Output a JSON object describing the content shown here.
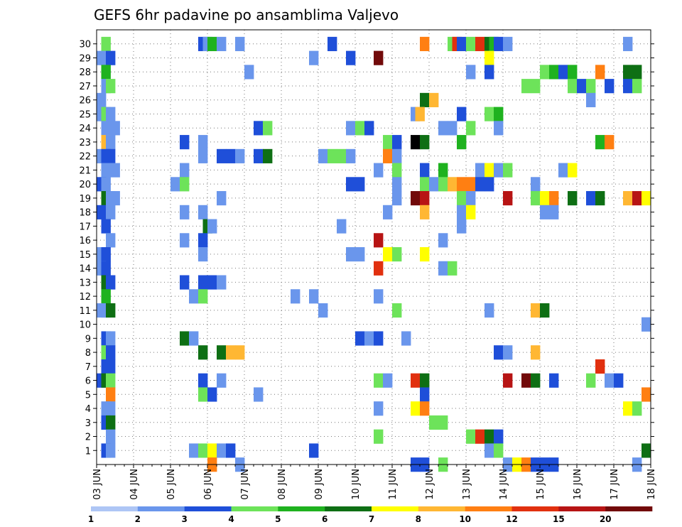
{
  "chart_data": {
    "type": "heatmap",
    "title": "GEFS 6hr padavine po ansamblima Valjevo",
    "xlabel": "",
    "ylabel": "",
    "x_tick_labels": [
      "03 JUN",
      "04 JUN",
      "05 JUN",
      "06 JUN",
      "07 JUN",
      "08 JUN",
      "09 JUN",
      "10 JUN",
      "11 JUN",
      "12 JUN",
      "13 JUN",
      "14 JUN",
      "15 JUN",
      "16 JUN",
      "17 JUN",
      "18 JUN"
    ],
    "y_tick_labels": [
      "1",
      "2",
      "3",
      "4",
      "5",
      "6",
      "7",
      "8",
      "9",
      "10",
      "11",
      "12",
      "13",
      "14",
      "15",
      "16",
      "17",
      "18",
      "19",
      "20",
      "21",
      "22",
      "23",
      "24",
      "25",
      "26",
      "27",
      "28",
      "29",
      "30"
    ],
    "xlim": [
      0,
      60
    ],
    "ylim": [
      0,
      31
    ],
    "grid": true,
    "colorbar": {
      "placement": "bottom",
      "labels": [
        "1",
        "2",
        "3",
        "4",
        "5",
        "6",
        "7",
        "8",
        "10",
        "12",
        "15",
        "20"
      ],
      "colors": [
        "#aec6f5",
        "#6a96ec",
        "#1f4fd9",
        "#6de35a",
        "#1fb21f",
        "#0e6f14",
        "#ffff00",
        "#ffb733",
        "#ff7f12",
        "#e1300f",
        "#b71414",
        "#720a0a"
      ]
    },
    "cells": [
      [
        30,
        0.5,
        3
      ],
      [
        30,
        11,
        2
      ],
      [
        30,
        11.5,
        1
      ],
      [
        30,
        12,
        4
      ],
      [
        30,
        13,
        1
      ],
      [
        30,
        15,
        1
      ],
      [
        30,
        25,
        2
      ],
      [
        30,
        35,
        8
      ],
      [
        30,
        38,
        3
      ],
      [
        30,
        38.5,
        9
      ],
      [
        30,
        39,
        2
      ],
      [
        30,
        40,
        3
      ],
      [
        30,
        41,
        9
      ],
      [
        30,
        42,
        5
      ],
      [
        30,
        42.5,
        4
      ],
      [
        30,
        43,
        2
      ],
      [
        30,
        44,
        1
      ],
      [
        30,
        57,
        1
      ],
      [
        29,
        0,
        1
      ],
      [
        29,
        1,
        2
      ],
      [
        29,
        23,
        1
      ],
      [
        29,
        27,
        2
      ],
      [
        29,
        30,
        11
      ],
      [
        29,
        42,
        6
      ],
      [
        28,
        0.5,
        4
      ],
      [
        28,
        16,
        1
      ],
      [
        28,
        40,
        1
      ],
      [
        28,
        42,
        2
      ],
      [
        28,
        48,
        3
      ],
      [
        28,
        49,
        4
      ],
      [
        28,
        50,
        2
      ],
      [
        28,
        51,
        4
      ],
      [
        28,
        54,
        8
      ],
      [
        28,
        57,
        5
      ],
      [
        28,
        58,
        5
      ],
      [
        27,
        0.5,
        1
      ],
      [
        27,
        1,
        3
      ],
      [
        27,
        46,
        3
      ],
      [
        27,
        47,
        3
      ],
      [
        27,
        51,
        3
      ],
      [
        27,
        52,
        2
      ],
      [
        27,
        53,
        3
      ],
      [
        27,
        55,
        2
      ],
      [
        27,
        57,
        2
      ],
      [
        27,
        58,
        3
      ],
      [
        26,
        0,
        1
      ],
      [
        26,
        35,
        5
      ],
      [
        26,
        36,
        7
      ],
      [
        26,
        53,
        1
      ],
      [
        25,
        0,
        1
      ],
      [
        25,
        0.5,
        3
      ],
      [
        25,
        1,
        1
      ],
      [
        25,
        34,
        1
      ],
      [
        25,
        34.5,
        7
      ],
      [
        25,
        39,
        2
      ],
      [
        25,
        42,
        3
      ],
      [
        25,
        43,
        4
      ],
      [
        24,
        0.5,
        1
      ],
      [
        24,
        1.5,
        1
      ],
      [
        24,
        17,
        2
      ],
      [
        24,
        18,
        3
      ],
      [
        24,
        27,
        1
      ],
      [
        24,
        28,
        3
      ],
      [
        24,
        29,
        2
      ],
      [
        24,
        37,
        1
      ],
      [
        24,
        38,
        1
      ],
      [
        24,
        40,
        3
      ],
      [
        24,
        43,
        1
      ],
      [
        23,
        0.5,
        7
      ],
      [
        23,
        1,
        1
      ],
      [
        23,
        9,
        2
      ],
      [
        23,
        11,
        1
      ],
      [
        23,
        31,
        3
      ],
      [
        23,
        32,
        2
      ],
      [
        23,
        34,
        12
      ],
      [
        23,
        35,
        5
      ],
      [
        23,
        39,
        4
      ],
      [
        23,
        54,
        4
      ],
      [
        23,
        55,
        8
      ],
      [
        22,
        0,
        1
      ],
      [
        22,
        0.5,
        2
      ],
      [
        22,
        1,
        2
      ],
      [
        22,
        11,
        1
      ],
      [
        22,
        13,
        2
      ],
      [
        22,
        14,
        2
      ],
      [
        22,
        15,
        1
      ],
      [
        22,
        17,
        2
      ],
      [
        22,
        18,
        5
      ],
      [
        22,
        24,
        1
      ],
      [
        22,
        25,
        3
      ],
      [
        22,
        26,
        3
      ],
      [
        22,
        27,
        1
      ],
      [
        22,
        31,
        8
      ],
      [
        22,
        32,
        1
      ],
      [
        21,
        0.5,
        1
      ],
      [
        21,
        1.5,
        1
      ],
      [
        21,
        9,
        1
      ],
      [
        21,
        30,
        1
      ],
      [
        21,
        32,
        3
      ],
      [
        21,
        35,
        2
      ],
      [
        21,
        37,
        4
      ],
      [
        21,
        41,
        1
      ],
      [
        21,
        42,
        6
      ],
      [
        21,
        43,
        1
      ],
      [
        21,
        44,
        3
      ],
      [
        21,
        50,
        1
      ],
      [
        21,
        51,
        6
      ],
      [
        20,
        0,
        2
      ],
      [
        20,
        0.5,
        1
      ],
      [
        20,
        8,
        1
      ],
      [
        20,
        9,
        3
      ],
      [
        20,
        27,
        2
      ],
      [
        20,
        28,
        2
      ],
      [
        20,
        32,
        1
      ],
      [
        20,
        35,
        3
      ],
      [
        20,
        36,
        1
      ],
      [
        20,
        37,
        3
      ],
      [
        20,
        38,
        7
      ],
      [
        20,
        39,
        8
      ],
      [
        20,
        40,
        8
      ],
      [
        20,
        41,
        2
      ],
      [
        20,
        42,
        2
      ],
      [
        20,
        47,
        1
      ],
      [
        19,
        0.5,
        5
      ],
      [
        19,
        1,
        1
      ],
      [
        19,
        1.5,
        1
      ],
      [
        19,
        13,
        1
      ],
      [
        19,
        32,
        1
      ],
      [
        19,
        34,
        11
      ],
      [
        19,
        35,
        10
      ],
      [
        19,
        39,
        3
      ],
      [
        19,
        40,
        1
      ],
      [
        19,
        44,
        10
      ],
      [
        19,
        47,
        3
      ],
      [
        19,
        48,
        6
      ],
      [
        19,
        49,
        8
      ],
      [
        19,
        51,
        5
      ],
      [
        19,
        53,
        2
      ],
      [
        19,
        54,
        5
      ],
      [
        19,
        57,
        7
      ],
      [
        19,
        58,
        10
      ],
      [
        19,
        59,
        6
      ],
      [
        18,
        0,
        2
      ],
      [
        18,
        1,
        1
      ],
      [
        18,
        9,
        1
      ],
      [
        18,
        11,
        1
      ],
      [
        18,
        31,
        1
      ],
      [
        18,
        35,
        7
      ],
      [
        18,
        39,
        1
      ],
      [
        18,
        40,
        6
      ],
      [
        18,
        48,
        1
      ],
      [
        18,
        49,
        1
      ],
      [
        17,
        0.5,
        2
      ],
      [
        17,
        11.5,
        5
      ],
      [
        17,
        12,
        1
      ],
      [
        17,
        26,
        1
      ],
      [
        17,
        39,
        1
      ],
      [
        16,
        1,
        1
      ],
      [
        16,
        9,
        1
      ],
      [
        16,
        11,
        2
      ],
      [
        16,
        30,
        10
      ],
      [
        16,
        37,
        1
      ],
      [
        15,
        0,
        1
      ],
      [
        15,
        0.5,
        2
      ],
      [
        15,
        11,
        1
      ],
      [
        15,
        27,
        1
      ],
      [
        15,
        28,
        1
      ],
      [
        15,
        31,
        6
      ],
      [
        15,
        32,
        3
      ],
      [
        15,
        35,
        6
      ],
      [
        14,
        0,
        1
      ],
      [
        14,
        0.5,
        2
      ],
      [
        14,
        30,
        9
      ],
      [
        14,
        37,
        1
      ],
      [
        14,
        38,
        3
      ],
      [
        13,
        0.5,
        5
      ],
      [
        13,
        1,
        2
      ],
      [
        13,
        9,
        2
      ],
      [
        13,
        11,
        2
      ],
      [
        13,
        12,
        2
      ],
      [
        13,
        13,
        1
      ],
      [
        12,
        0.5,
        4
      ],
      [
        12,
        10,
        1
      ],
      [
        12,
        11,
        3
      ],
      [
        12,
        21,
        1
      ],
      [
        12,
        23,
        1
      ],
      [
        12,
        30,
        1
      ],
      [
        11,
        0,
        1
      ],
      [
        11,
        0.5,
        1
      ],
      [
        11,
        1,
        5
      ],
      [
        11,
        24,
        1
      ],
      [
        11,
        32,
        3
      ],
      [
        11,
        42,
        1
      ],
      [
        11,
        47,
        7
      ],
      [
        11,
        48,
        5
      ],
      [
        10,
        59,
        1
      ],
      [
        9,
        0.5,
        2
      ],
      [
        9,
        1,
        1
      ],
      [
        9,
        9,
        5
      ],
      [
        9,
        10,
        1
      ],
      [
        9,
        28,
        2
      ],
      [
        9,
        29,
        1
      ],
      [
        9,
        30,
        2
      ],
      [
        9,
        33,
        1
      ],
      [
        8,
        0.5,
        3
      ],
      [
        8,
        1,
        2
      ],
      [
        8,
        11,
        5
      ],
      [
        8,
        13,
        5
      ],
      [
        8,
        14,
        7
      ],
      [
        8,
        15,
        7
      ],
      [
        8,
        43,
        2
      ],
      [
        8,
        44,
        1
      ],
      [
        8,
        47,
        7
      ],
      [
        7,
        0.5,
        2
      ],
      [
        7,
        1,
        2
      ],
      [
        7,
        54,
        9
      ],
      [
        6,
        0,
        2
      ],
      [
        6,
        0.5,
        5
      ],
      [
        6,
        1,
        3
      ],
      [
        6,
        11,
        2
      ],
      [
        6,
        13,
        1
      ],
      [
        6,
        30,
        3
      ],
      [
        6,
        31,
        1
      ],
      [
        6,
        34,
        9
      ],
      [
        6,
        35,
        5
      ],
      [
        6,
        44,
        10
      ],
      [
        6,
        46,
        11
      ],
      [
        6,
        47,
        5
      ],
      [
        6,
        49,
        2
      ],
      [
        6,
        53,
        3
      ],
      [
        6,
        55,
        1
      ],
      [
        6,
        56,
        2
      ],
      [
        5,
        1,
        8
      ],
      [
        5,
        11,
        3
      ],
      [
        5,
        12,
        2
      ],
      [
        5,
        17,
        1
      ],
      [
        5,
        35,
        2
      ],
      [
        5,
        59,
        8
      ],
      [
        4,
        0.5,
        1
      ],
      [
        4,
        1,
        1
      ],
      [
        4,
        30,
        1
      ],
      [
        4,
        34,
        6
      ],
      [
        4,
        35,
        8
      ],
      [
        4,
        57,
        6
      ],
      [
        4,
        58,
        3
      ],
      [
        3,
        0.5,
        2
      ],
      [
        3,
        1,
        5
      ],
      [
        3,
        36,
        3
      ],
      [
        3,
        37,
        3
      ],
      [
        2,
        1,
        1
      ],
      [
        2,
        30,
        3
      ],
      [
        2,
        40,
        3
      ],
      [
        2,
        41,
        9
      ],
      [
        2,
        42,
        5
      ],
      [
        2,
        43,
        2
      ],
      [
        1,
        0.5,
        2
      ],
      [
        1,
        1,
        1
      ],
      [
        1,
        10,
        1
      ],
      [
        1,
        11,
        3
      ],
      [
        1,
        12,
        6
      ],
      [
        1,
        13,
        1
      ],
      [
        1,
        14,
        2
      ],
      [
        1,
        23,
        2
      ],
      [
        1,
        42,
        1
      ],
      [
        1,
        43,
        3
      ],
      [
        1,
        59,
        5
      ],
      [
        0,
        12,
        8
      ],
      [
        0,
        15,
        1
      ],
      [
        0,
        34,
        2
      ],
      [
        0,
        35,
        2
      ],
      [
        0,
        37,
        3
      ],
      [
        0,
        44,
        1
      ],
      [
        0,
        45,
        6
      ],
      [
        0,
        46,
        8
      ],
      [
        0,
        47,
        2
      ],
      [
        0,
        48,
        2
      ],
      [
        0,
        49,
        2
      ],
      [
        0,
        58,
        1
      ]
    ]
  }
}
